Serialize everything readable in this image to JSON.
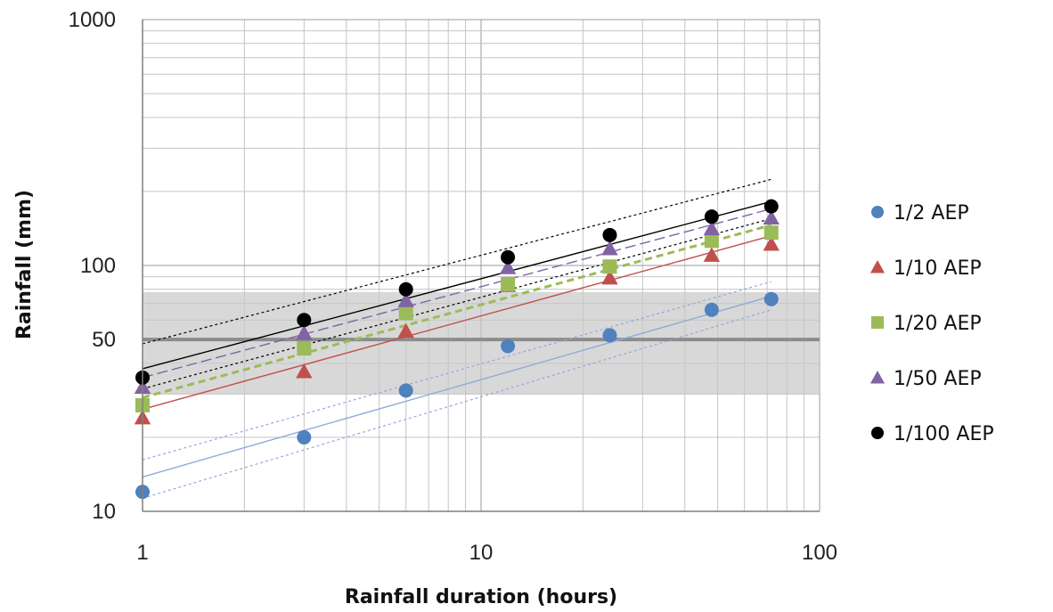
{
  "chart_data": {
    "type": "scatter",
    "title": "",
    "xlabel": "Rainfall duration (hours)",
    "ylabel": "Rainfall (mm)",
    "xscale": "log",
    "yscale": "log",
    "xlim": [
      1,
      100
    ],
    "ylim": [
      10,
      1000
    ],
    "x_ticks": [
      "1",
      "10",
      "100"
    ],
    "y_ticks": [
      "10",
      "50",
      "100",
      "1000"
    ],
    "grid": true,
    "legend_position": "right",
    "reference_band": {
      "center": 50,
      "lower": 30,
      "upper": 78,
      "color": "#c8c8c8"
    },
    "series": [
      {
        "name": "1/2 AEP",
        "marker": "circle",
        "color": "#4f81bd",
        "x": [
          1,
          3,
          6,
          12,
          24,
          48,
          72
        ],
        "y": [
          12,
          20,
          31,
          47,
          52,
          66,
          73
        ],
        "trend": {
          "x": [
            1,
            72
          ],
          "y": [
            13.8,
            75
          ],
          "color": "#8eaadb",
          "dash": ""
        },
        "bounds": [
          {
            "x": [
              1,
              72
            ],
            "y": [
              11.3,
              66
            ],
            "color": "#8eaadb",
            "dash": "3,3"
          },
          {
            "x": [
              1,
              72
            ],
            "y": [
              16.2,
              86
            ],
            "color": "#8eaadb",
            "dash": "3,3"
          }
        ]
      },
      {
        "name": "1/10 AEP",
        "marker": "triangle",
        "color": "#c0504d",
        "x": [
          1,
          3,
          6,
          12,
          24,
          48,
          72
        ],
        "y": [
          24,
          37,
          54,
          83,
          89,
          110,
          122
        ],
        "trend": {
          "x": [
            1,
            72
          ],
          "y": [
            26,
            132
          ],
          "color": "#c0504d",
          "dash": ""
        }
      },
      {
        "name": "1/20 AEP",
        "marker": "square",
        "color": "#9bbb59",
        "x": [
          1,
          3,
          6,
          12,
          24,
          48,
          72
        ],
        "y": [
          27,
          46,
          64,
          84,
          99,
          126,
          136
        ],
        "trend": {
          "x": [
            1,
            72
          ],
          "y": [
            29,
            146
          ],
          "color": "#9bbb59",
          "dash": "8,5",
          "width": 3
        }
      },
      {
        "name": "1/50 AEP",
        "marker": "triangle",
        "color": "#8064a2",
        "x": [
          1,
          3,
          6,
          12,
          24,
          48,
          72
        ],
        "y": [
          32,
          53,
          72,
          98,
          117,
          141,
          156
        ],
        "trend": {
          "x": [
            1,
            72
          ],
          "y": [
            35,
            170
          ],
          "color": "#8064a2",
          "dash": "12,5"
        }
      },
      {
        "name": "1/100 AEP",
        "marker": "circle",
        "color": "#000000",
        "x": [
          1,
          3,
          6,
          12,
          24,
          48,
          72
        ],
        "y": [
          35,
          60,
          80,
          108,
          133,
          158,
          174
        ],
        "trend": {
          "x": [
            1,
            72
          ],
          "y": [
            38,
            182
          ],
          "color": "#000000",
          "dash": ""
        },
        "bounds": [
          {
            "x": [
              1,
              72
            ],
            "y": [
              31.5,
              155
            ],
            "color": "#000000",
            "dash": "3,3"
          },
          {
            "x": [
              1,
              72
            ],
            "y": [
              48,
              224
            ],
            "color": "#000000",
            "dash": "3,3"
          }
        ]
      }
    ]
  }
}
